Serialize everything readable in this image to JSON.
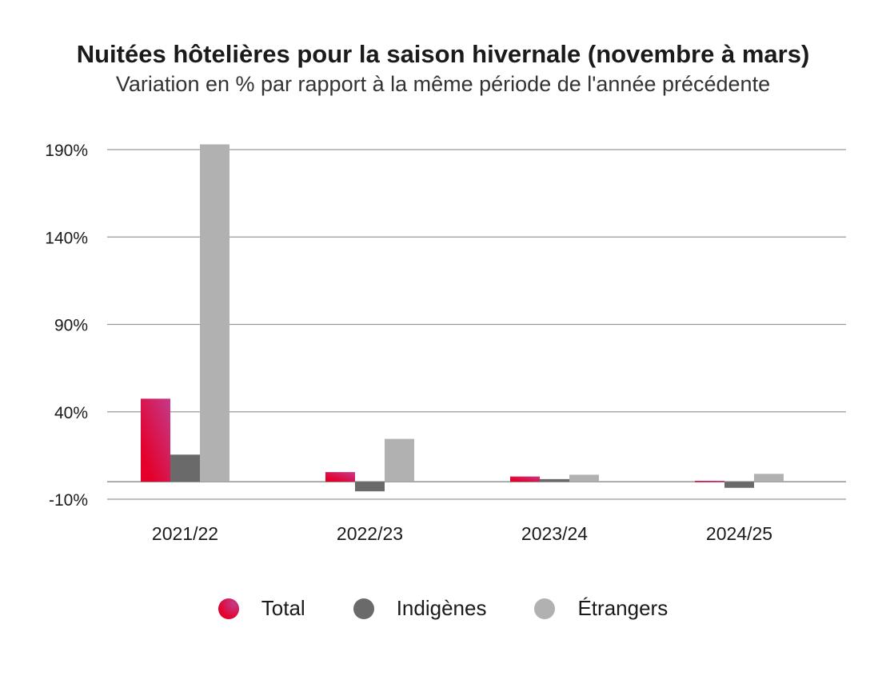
{
  "colors": {
    "total_start": "#e4002b",
    "total_end": "#c43a8a",
    "indigenes": "#6a6a6a",
    "etrangers": "#b1b1b1",
    "grid": "#9a9a9a"
  },
  "chart_data": {
    "type": "bar",
    "title": "Nuitées hôtelières pour la saison hivernale (novembre à mars)",
    "subtitle": "Variation en % par rapport à la même période de l'année précédente",
    "categories": [
      "2021/22",
      "2022/23",
      "2023/24",
      "2024/25"
    ],
    "series": [
      {
        "name": "Total",
        "values": [
          47.5,
          5.5,
          3,
          0.5
        ]
      },
      {
        "name": "Indigènes",
        "values": [
          15.5,
          -5.5,
          1.5,
          -3.5
        ]
      },
      {
        "name": "Étrangers",
        "values": [
          193,
          24.5,
          4,
          4.5
        ]
      }
    ],
    "ylim": [
      -10,
      190
    ],
    "yticks": [
      190,
      140,
      90,
      40,
      -10
    ],
    "ytick_labels": [
      "190%",
      "140%",
      "90%",
      "40%",
      "-10%"
    ],
    "grid": true,
    "legend_position": "bottom"
  }
}
